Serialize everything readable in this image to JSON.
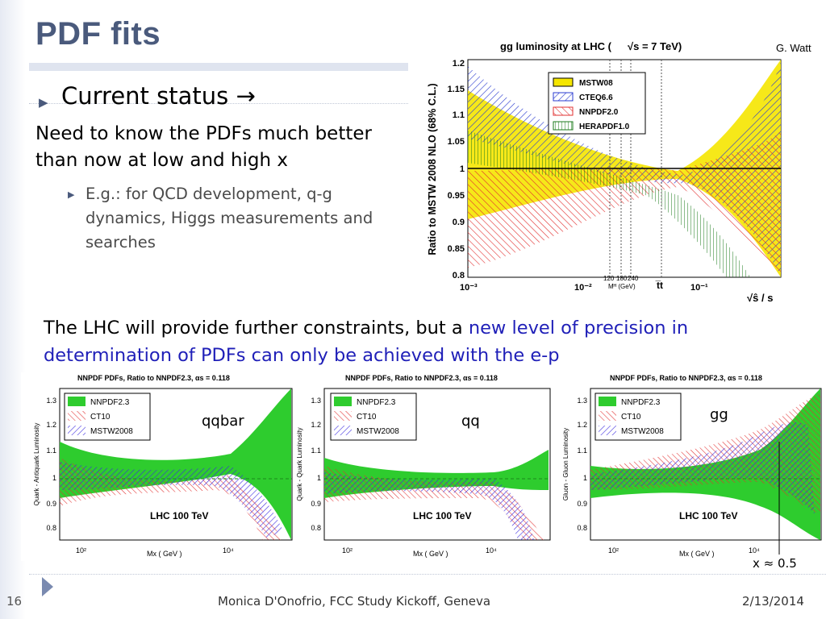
{
  "slide": {
    "title": "PDF fits",
    "bullet1": "Current status →",
    "para1": "Need to know the PDFs much better than now at low and high x",
    "sub_bullet": "E.g.: for QCD development, q-g dynamics, Higgs measurements and searches",
    "para2_black": "The LHC will provide further constraints, but a ",
    "para2_blue": "new level of precision in determination of PDFs can only be achieved with the e-p",
    "x_note": "x ≈ 0.5"
  },
  "footer": {
    "slide_number": "16",
    "center": "Monica D'Onofrio, FCC Study Kickoff, Geneva",
    "date": "2/13/2014"
  },
  "top_plot": {
    "title": "gg luminosity at LHC (",
    "title_sqrt": "√s = 7 TeV)",
    "credit": "G. Watt",
    "ylabel": "Ratio to MSTW 2008 NLO (68% C.L.)",
    "xlabel": "√ŝ / s",
    "yticks": [
      "1.2",
      "1.15",
      "1.1",
      "1.05",
      "1",
      "0.95",
      "0.9",
      "0.85",
      "0.8"
    ],
    "xticks": [
      "10⁻³",
      "10⁻²",
      "10⁻¹"
    ],
    "mh_ticks": [
      "120",
      "180",
      "240"
    ],
    "mh_label": "Mᴴ (GeV)",
    "tt_label": "t̅t",
    "legend": [
      "MSTW08",
      "CTEQ6.6",
      "NNPDF2.0",
      "HERAPDF1.0"
    ],
    "colors": {
      "MSTW08": "#f5e600",
      "CTEQ6.6": "#2a3bd0",
      "NNPDF2.0": "#e23030",
      "HERAPDF1.0": "#1a7a1a"
    }
  },
  "bottom_plots": [
    {
      "title": "NNPDF PDFs, Ratio to NNPDF2.3, αs = 0.118",
      "ylabel": "Quark - Antiquark Luminosity",
      "label": "qqbar",
      "energy": "LHC 100 TeV",
      "xlabel": "Mx ( GeV )",
      "legend": [
        "NNPDF2.3",
        "CT10",
        "MSTW2008"
      ],
      "yticks": [
        "1.3",
        "1.2",
        "1.1",
        "1",
        "0.9",
        "0.8"
      ],
      "xticks": [
        "10²",
        "10⁴"
      ]
    },
    {
      "title": "NNPDF PDFs, Ratio to NNPDF2.3, αs = 0.118",
      "ylabel": "Quark - Quark Luminosity",
      "label": "qq",
      "energy": "LHC 100 TeV",
      "xlabel": "Mx ( GeV )",
      "legend": [
        "NNPDF2.3",
        "CT10",
        "MSTW2008"
      ],
      "yticks": [
        "1.3",
        "1.2",
        "1.1",
        "1",
        "0.9",
        "0.8"
      ],
      "xticks": [
        "10²",
        "10⁴"
      ]
    },
    {
      "title": "NNPDF PDFs, Ratio to NNPDF2.3, αs = 0.118",
      "ylabel": "Gluon - Gluon Luminosity",
      "label": "gg",
      "energy": "LHC 100 TeV",
      "xlabel": "Mx ( GeV )",
      "legend": [
        "NNPDF2.3",
        "CT10",
        "MSTW2008"
      ],
      "yticks": [
        "1.3",
        "1.2",
        "1.1",
        "1",
        "0.9",
        "0.8"
      ],
      "xticks": [
        "10²",
        "10⁴"
      ]
    }
  ]
}
